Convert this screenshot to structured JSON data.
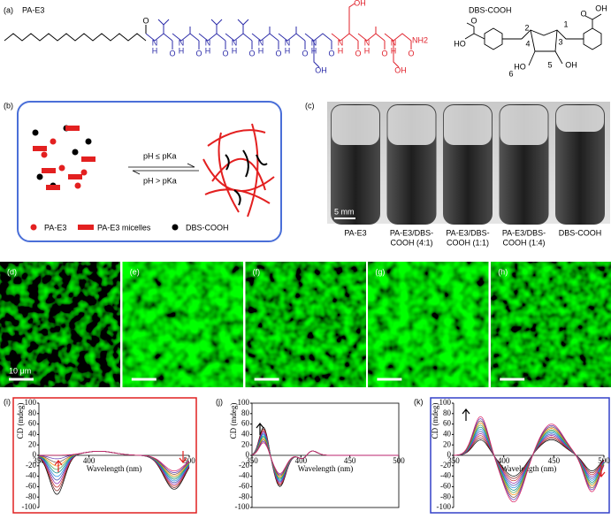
{
  "a": {
    "label": "(a)",
    "pa_e3": "PA-E3",
    "dbs_cooh": "DBS-COOH",
    "O": "O",
    "N": "N",
    "H": "H",
    "NH2": "NH2",
    "OH": "OH",
    "HO": "HO",
    "numbers": [
      "1",
      "2",
      "3",
      "4",
      "5",
      "6"
    ]
  },
  "b": {
    "label": "(b)",
    "forward": "pH ≤ pKa",
    "backward": "pH > pKa",
    "legend": [
      "PA-E3",
      "PA-E3 micelles",
      "DBS-COOH"
    ]
  },
  "c": {
    "label": "(c)",
    "scale": "5 mm",
    "vials": [
      [
        "PA-E3"
      ],
      [
        "PA-E3/DBS-",
        "COOH (4:1)"
      ],
      [
        "PA-E3/DBS-",
        "COOH (1:1)"
      ],
      [
        "PA-E3/DBS-",
        "COOH (1:4)"
      ],
      [
        "DBS-COOH"
      ]
    ]
  },
  "micrographs": {
    "labels": [
      "(d)",
      "(e)",
      "(f)",
      "(g)",
      "(h)"
    ],
    "scale": "10 μm"
  },
  "cd": {
    "y_label": "CD (mdeg)",
    "x_label": "Wavelength (nm)",
    "plots": [
      {
        "label": "(i)",
        "yticks": [
          100,
          80,
          60,
          40,
          20,
          0,
          -20,
          -40,
          -60,
          -80,
          -100
        ],
        "xticks": [
          350,
          400,
          500
        ]
      },
      {
        "label": "(j)",
        "yticks": [
          100,
          80,
          60,
          40,
          20,
          0,
          -20,
          -40,
          -60,
          -80,
          -100
        ],
        "xticks": [
          350,
          400,
          450,
          500
        ]
      },
      {
        "label": "(k)",
        "yticks": [
          100,
          80,
          60,
          40,
          20,
          0,
          -20,
          -40,
          -60,
          -80,
          -100
        ],
        "xticks": [
          350,
          400,
          450,
          500
        ]
      }
    ]
  }
}
